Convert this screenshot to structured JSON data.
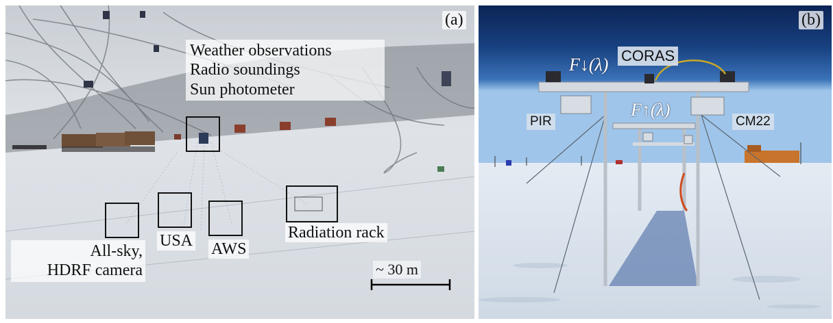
{
  "panel_a": {
    "tag": "(a)",
    "station_label": [
      "Weather observations",
      "Radio soundings",
      "Sun photometer"
    ],
    "allsky_label": [
      "All-sky,",
      "HDRF camera"
    ],
    "usa_label": "USA",
    "aws_label": "AWS",
    "rack_label": "Radiation rack",
    "scale_label": "~ 30 m"
  },
  "panel_b": {
    "tag": "(b)",
    "coras_label": "CORAS",
    "pir_label": "PIR",
    "cm22_label": "CM22",
    "f_down_label": "F↓(λ)",
    "f_up_label": "F↑(λ)"
  },
  "colors": {
    "snow": "#e9edf1",
    "sky_top": "#0f2d63",
    "sky_horizon": "#9ec4ea",
    "label_bg": "#ffffff"
  }
}
